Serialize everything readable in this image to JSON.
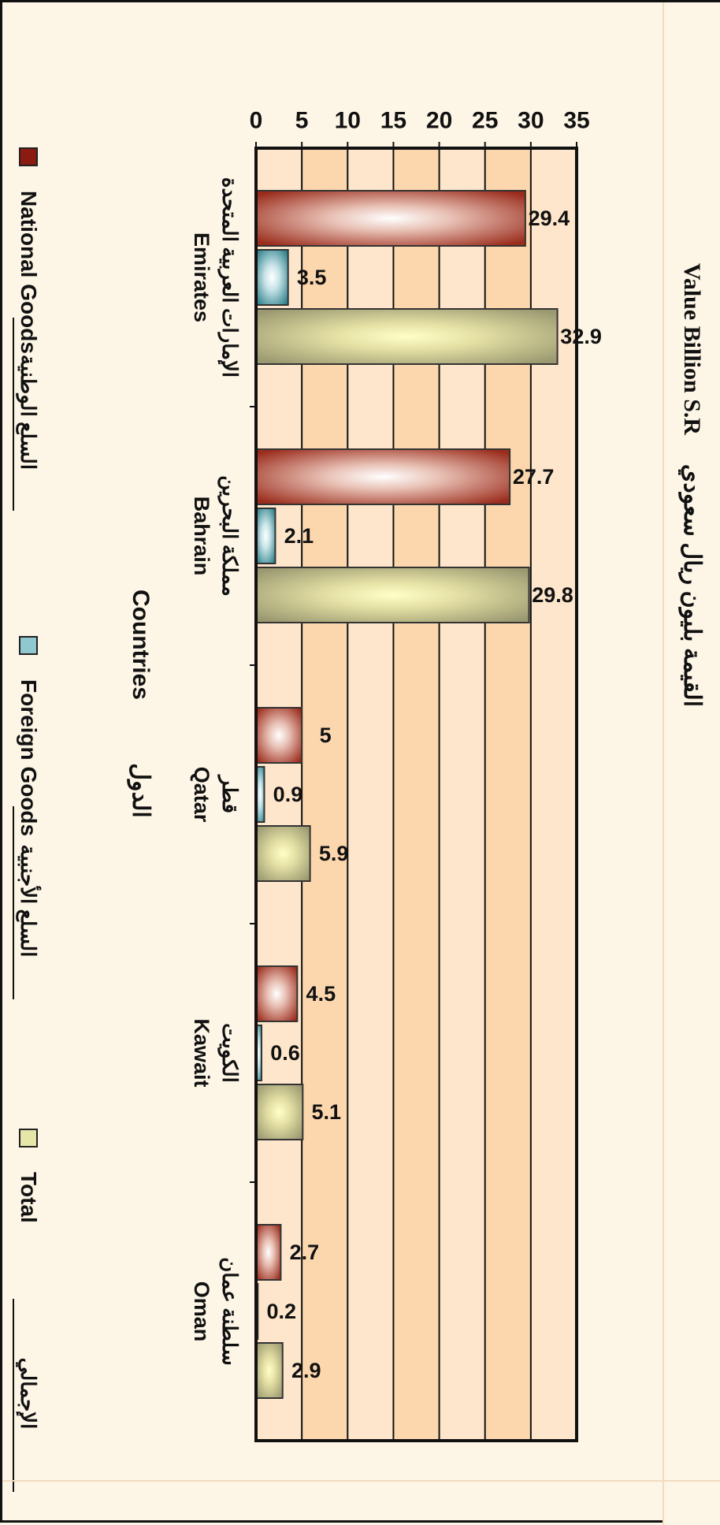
{
  "chart_data": {
    "type": "bar",
    "orientation": "vertical",
    "ylabel_en": "Value Billion S.R",
    "ylabel_ar": "القيمة بليون ريال سعودي",
    "xlabel_en": "Countries",
    "xlabel_ar": "الدول",
    "ylim": [
      0,
      35
    ],
    "yticks": [
      "0",
      "5",
      "10",
      "15",
      "20",
      "25",
      "30",
      "35"
    ],
    "categories": [
      {
        "en": "Emirates",
        "ar": "الإمارات العربية المتحدة"
      },
      {
        "en": "Bahrain",
        "ar": "مملكة البحرين"
      },
      {
        "en": "Qatar",
        "ar": "قطر"
      },
      {
        "en": "Kawait",
        "ar": "الكويت"
      },
      {
        "en": "Oman",
        "ar": "سلطنة عمان"
      }
    ],
    "series": [
      {
        "name": "National Goods",
        "name_ar": "السلع الوطنية",
        "color": "#8b1a10",
        "values": [
          29.4,
          27.7,
          5,
          4.5,
          2.7
        ]
      },
      {
        "name": "Foreign Goods",
        "name_ar": "السلع الأجنبية",
        "color": "#3a8a94",
        "values": [
          3.5,
          2.1,
          0.9,
          0.6,
          0.2
        ]
      },
      {
        "name": "Total",
        "name_ar": "الإجمالي",
        "color": "#a6a67a",
        "values": [
          32.9,
          29.8,
          5.9,
          5.1,
          2.9
        ]
      }
    ],
    "value_labels": [
      [
        "29.4",
        "27.7",
        "5",
        "4.5",
        "2.7"
      ],
      [
        "3.5",
        "2.1",
        "0.9",
        "0.6",
        "0.2"
      ],
      [
        "32.9",
        "29.8",
        "5.9",
        "5.1",
        "2.9"
      ]
    ],
    "grid": true,
    "legend_position": "bottom"
  }
}
